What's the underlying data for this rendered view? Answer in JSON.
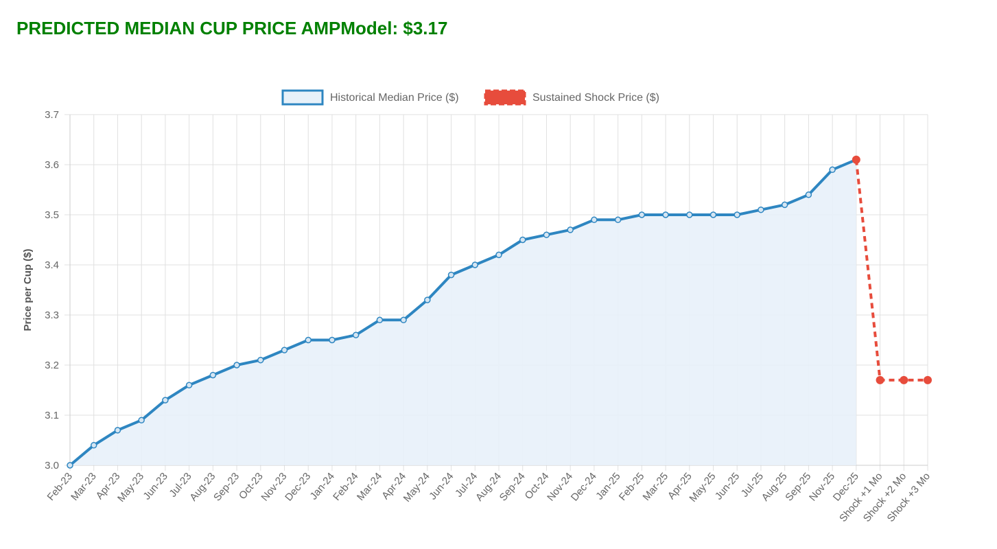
{
  "title": "PREDICTED MEDIAN CUP PRICE AMPModel: $3.17",
  "chart_data": {
    "type": "line",
    "title": "",
    "xlabel": "",
    "ylabel": "Price per Cup ($)",
    "ylim": [
      3.0,
      3.7
    ],
    "yticks": [
      "3.0",
      "3.1",
      "3.2",
      "3.3",
      "3.4",
      "3.5",
      "3.6",
      "3.7"
    ],
    "grid": true,
    "legend_position": "top",
    "categories": [
      "Feb-23",
      "Mar-23",
      "Apr-23",
      "May-23",
      "Jun-23",
      "Jul-23",
      "Aug-23",
      "Sep-23",
      "Oct-23",
      "Nov-23",
      "Dec-23",
      "Jan-24",
      "Feb-24",
      "Mar-24",
      "Apr-24",
      "May-24",
      "Jun-24",
      "Jul-24",
      "Aug-24",
      "Sep-24",
      "Oct-24",
      "Nov-24",
      "Dec-24",
      "Jan-25",
      "Feb-25",
      "Mar-25",
      "Apr-25",
      "May-25",
      "Jun-25",
      "Jul-25",
      "Aug-25",
      "Sep-25",
      "Nov-25",
      "Dec-25",
      "Shock +1 Mo",
      "Shock +2 Mo",
      "Shock +3 Mo"
    ],
    "series": [
      {
        "name": "Historical Median Price ($)",
        "color": "#2e86c1",
        "fill": "#e8f1f9",
        "style": "solid",
        "values": [
          3.0,
          3.04,
          3.07,
          3.09,
          3.13,
          3.16,
          3.18,
          3.2,
          3.21,
          3.23,
          3.25,
          3.25,
          3.26,
          3.29,
          3.29,
          3.33,
          3.38,
          3.4,
          3.42,
          3.45,
          3.46,
          3.47,
          3.49,
          3.49,
          3.5,
          3.5,
          3.5,
          3.5,
          3.5,
          3.51,
          3.52,
          3.54,
          3.59,
          3.61,
          null,
          null,
          null
        ]
      },
      {
        "name": "Sustained Shock Price ($)",
        "color": "#e74c3c",
        "style": "dashed",
        "values": [
          null,
          null,
          null,
          null,
          null,
          null,
          null,
          null,
          null,
          null,
          null,
          null,
          null,
          null,
          null,
          null,
          null,
          null,
          null,
          null,
          null,
          null,
          null,
          null,
          null,
          null,
          null,
          null,
          null,
          null,
          null,
          null,
          null,
          3.61,
          3.17,
          3.17,
          3.17
        ]
      }
    ]
  }
}
